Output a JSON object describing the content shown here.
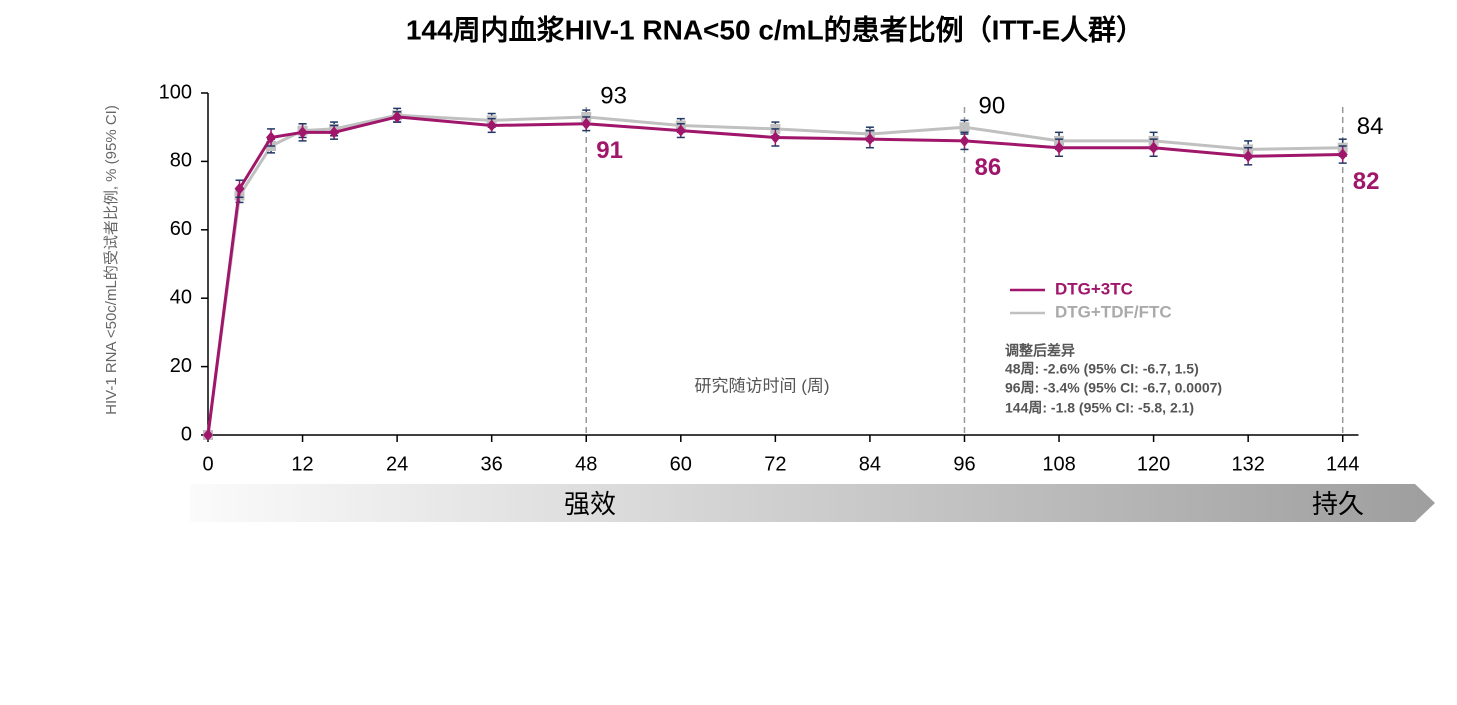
{
  "chart_data": {
    "type": "line",
    "title": "144周内血浆HIV-1 RNA<50 c/mL的患者比例（ITT-E人群）",
    "y_label": "HIV-1 RNA <50c/mL的受试者比例, % (95% CI)",
    "x_label": "研究随访时间 (周)",
    "x": [
      0,
      4,
      8,
      12,
      16,
      24,
      36,
      48,
      60,
      72,
      84,
      96,
      108,
      120,
      132,
      144
    ],
    "series": [
      {
        "name": "DTG+TDF/FTC",
        "color": "#c0c0c0",
        "values": [
          0,
          70,
          84.5,
          89,
          89.5,
          93.5,
          92,
          93,
          90.5,
          89.5,
          88,
          90,
          86,
          86,
          83.5,
          84
        ],
        "errors": [
          0,
          2,
          2,
          2,
          2,
          2,
          2,
          2,
          2,
          2,
          2,
          2,
          2.5,
          2.5,
          2.5,
          2.5
        ],
        "value_labels": [
          null,
          null,
          null,
          null,
          null,
          null,
          null,
          "93",
          null,
          null,
          null,
          "90",
          null,
          null,
          null,
          "84"
        ]
      },
      {
        "name": "DTG+3TC",
        "color": "#a0166a",
        "values": [
          0,
          72,
          87,
          88.5,
          88.5,
          93,
          90.5,
          91,
          89,
          87,
          86.5,
          86,
          84,
          84,
          81.5,
          82
        ],
        "errors": [
          0,
          2.5,
          2.5,
          2.5,
          2,
          1.5,
          2,
          2,
          2,
          2.5,
          2.5,
          2.5,
          2.5,
          2.5,
          2.5,
          2.5
        ],
        "value_labels": [
          null,
          null,
          null,
          null,
          null,
          null,
          null,
          "91",
          null,
          null,
          null,
          "86",
          null,
          null,
          null,
          "82"
        ]
      }
    ],
    "xlim": [
      0,
      146
    ],
    "xticks": [
      0,
      12,
      24,
      36,
      48,
      60,
      72,
      84,
      96,
      108,
      120,
      132,
      144
    ],
    "ylim": [
      0,
      100
    ],
    "yticks": [
      0,
      20,
      40,
      60,
      80,
      100
    ],
    "reference_lines": [
      48,
      96,
      144
    ],
    "difference_note": {
      "title": "调整后差异",
      "lines": [
        "48周:  -2.6% (95% CI: -6.7, 1.5)",
        "96周:  -3.4% (95% CI: -6.7, 0.0007)",
        "144周:  -1.8 (95% CI: -5.8, 2.1)"
      ]
    },
    "banner": [
      "强效",
      "持久"
    ]
  }
}
